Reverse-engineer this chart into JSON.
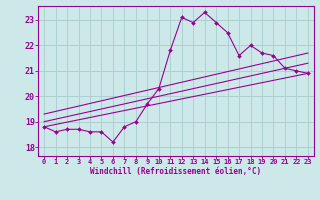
{
  "xlabel": "Windchill (Refroidissement éolien,°C)",
  "bg_color": "#cce8e8",
  "grid_color": "#aacccc",
  "line_color": "#990099",
  "x_ticks": [
    0,
    1,
    2,
    3,
    4,
    5,
    6,
    7,
    8,
    9,
    10,
    11,
    12,
    13,
    14,
    15,
    16,
    17,
    18,
    19,
    20,
    21,
    22,
    23
  ],
  "ylim": [
    17.65,
    23.55
  ],
  "xlim": [
    -0.5,
    23.5
  ],
  "yticks": [
    18,
    19,
    20,
    21,
    22,
    23
  ],
  "series": [
    {
      "x": [
        0,
        1,
        2,
        3,
        4,
        5,
        6,
        7,
        8,
        9,
        10,
        11,
        12,
        13,
        14,
        15,
        16,
        17,
        18,
        19,
        20,
        21,
        22,
        23
      ],
      "y": [
        18.8,
        18.6,
        18.7,
        18.7,
        18.6,
        18.6,
        18.2,
        18.8,
        19.0,
        19.7,
        20.3,
        21.8,
        23.1,
        22.9,
        23.3,
        22.9,
        22.5,
        21.6,
        22.0,
        21.7,
        21.6,
        21.1,
        21.0,
        20.9
      ]
    },
    {
      "x": [
        0,
        23
      ],
      "y": [
        18.8,
        20.9
      ]
    },
    {
      "x": [
        0,
        23
      ],
      "y": [
        19.0,
        21.3
      ]
    },
    {
      "x": [
        0,
        23
      ],
      "y": [
        19.3,
        21.7
      ]
    }
  ]
}
